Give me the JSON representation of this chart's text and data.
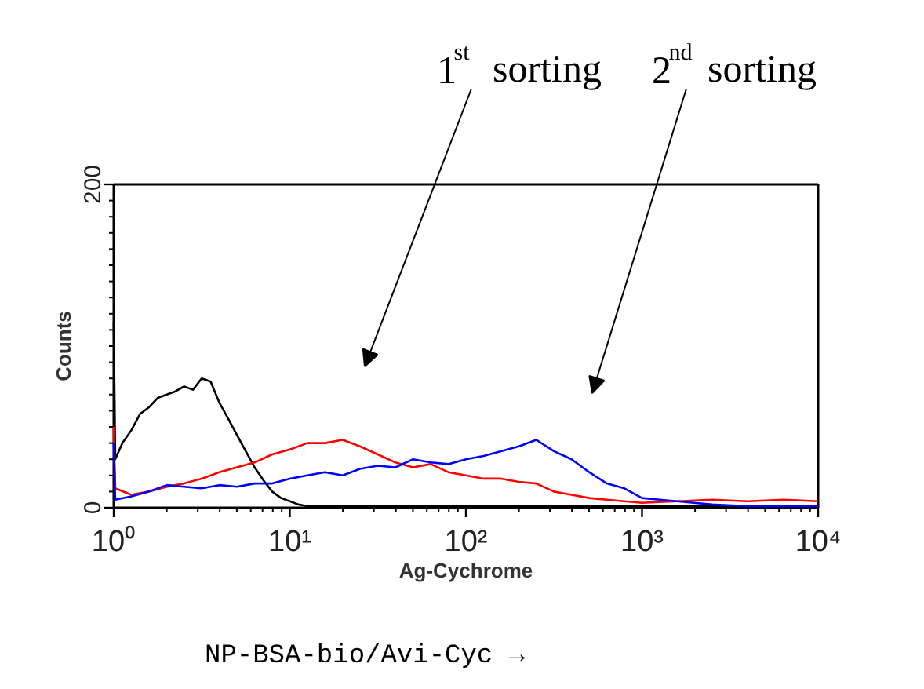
{
  "chart_data": {
    "type": "line",
    "xlabel": "Ag-Cychrome",
    "ylabel": "Counts",
    "log": "x",
    "grid": false,
    "marker": "none",
    "line_style": "solid",
    "xlim": [
      1,
      10000
    ],
    "ylim": [
      0,
      200
    ],
    "xticks": [
      {
        "value": 1,
        "label": "10⁰"
      },
      {
        "value": 10,
        "label": "10¹"
      },
      {
        "value": 100,
        "label": "10²"
      },
      {
        "value": 1000,
        "label": "10³"
      },
      {
        "value": 10000,
        "label": "10⁴"
      }
    ],
    "yticks": [
      0,
      200
    ],
    "series": [
      {
        "color": "#000000",
        "x": [
          1.0,
          1.02,
          1.12,
          1.26,
          1.41,
          1.58,
          1.78,
          2.0,
          2.24,
          2.51,
          2.82,
          3.16,
          3.55,
          3.98,
          4.47,
          5.01,
          5.62,
          6.31,
          7.08,
          7.94,
          8.91,
          10,
          11.2,
          12.6,
          15.8,
          25,
          50,
          100,
          1000,
          10000
        ],
        "values": [
          115,
          30,
          40,
          48,
          58,
          62,
          68,
          70,
          72,
          75,
          73,
          80,
          78,
          65,
          55,
          45,
          35,
          25,
          17,
          10,
          6,
          4,
          2,
          1,
          1,
          1,
          1,
          1,
          1,
          1
        ]
      },
      {
        "color": "#ff0000",
        "x": [
          1.0,
          1.02,
          1.26,
          1.58,
          2.0,
          2.51,
          3.16,
          3.98,
          5.01,
          6.31,
          7.94,
          10,
          12.6,
          15.8,
          20,
          25,
          31.6,
          39.8,
          50.1,
          63.1,
          79.4,
          100,
          126,
          158,
          200,
          251,
          316,
          398,
          501,
          631,
          794,
          1000,
          1580,
          2510,
          3980,
          6310,
          10000
        ],
        "values": [
          50,
          12,
          8,
          10,
          13,
          15,
          18,
          22,
          25,
          28,
          33,
          36,
          40,
          40,
          42,
          38,
          33,
          28,
          25,
          27,
          22,
          20,
          18,
          18,
          16,
          15,
          10,
          8,
          6,
          5,
          4,
          3,
          4,
          5,
          4,
          5,
          4
        ]
      },
      {
        "color": "#0000ff",
        "x": [
          1.0,
          1.02,
          1.26,
          1.58,
          2.0,
          2.51,
          3.16,
          3.98,
          5.01,
          6.31,
          7.94,
          10,
          12.6,
          15.8,
          20,
          25,
          31.6,
          39.8,
          50.1,
          63.1,
          79.4,
          100,
          126,
          158,
          200,
          251,
          316,
          398,
          501,
          631,
          794,
          1000,
          1260,
          1580,
          2510,
          3980,
          6310,
          10000
        ],
        "values": [
          40,
          5,
          7,
          10,
          14,
          13,
          12,
          14,
          13,
          15,
          15,
          18,
          20,
          22,
          20,
          24,
          26,
          25,
          30,
          28,
          27,
          30,
          32,
          35,
          38,
          42,
          35,
          30,
          22,
          15,
          12,
          6,
          5,
          4,
          2,
          1,
          1,
          1
        ]
      }
    ],
    "annotations": [
      "1$^{st}$ sorting",
      "2$^{nd}$ sorting",
      "NP-BSA-bio/Avi-Cyc →"
    ]
  }
}
